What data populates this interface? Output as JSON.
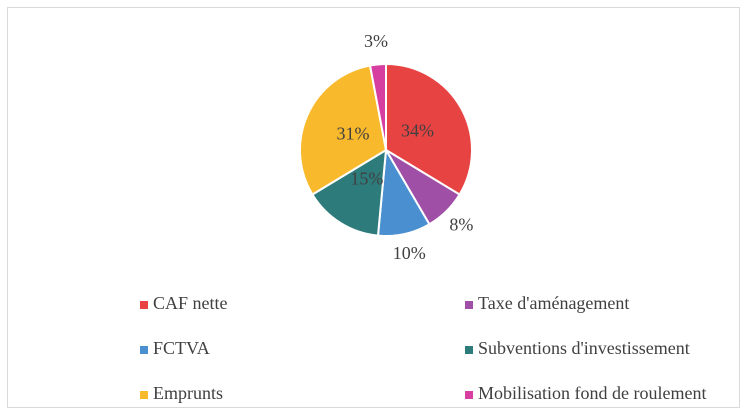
{
  "chart_data": {
    "type": "pie",
    "categories": [
      "CAF nette",
      "Taxe d'aménagement",
      "FCTVA",
      "Subventions d'investissement",
      "Emprunts",
      "Mobilisation fond de roulement"
    ],
    "values": [
      34,
      8,
      10,
      15,
      31,
      3
    ],
    "value_labels": [
      "34%",
      "8%",
      "10%",
      "15%",
      "31%",
      "3%"
    ],
    "colors": [
      "#e84343",
      "#a04fa6",
      "#4a90d0",
      "#2e7b7b",
      "#f8b92c",
      "#d63fa0"
    ],
    "legend": "bottom"
  }
}
